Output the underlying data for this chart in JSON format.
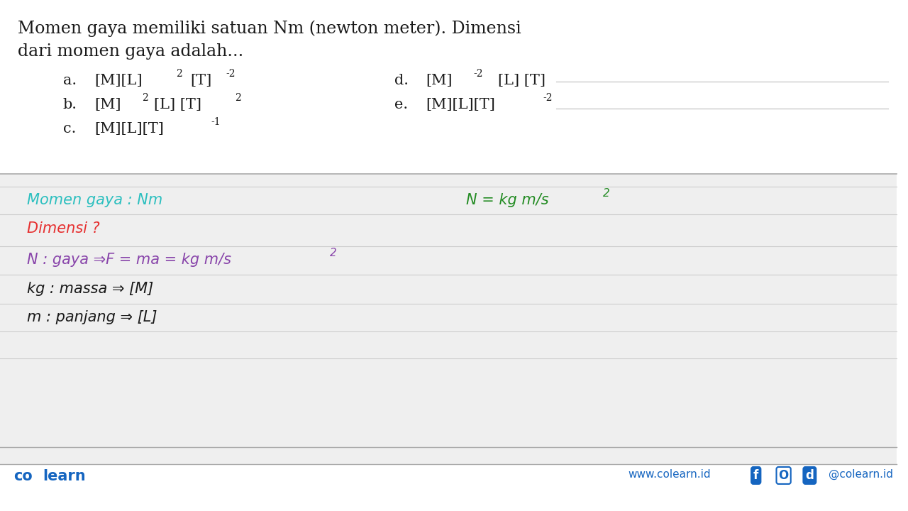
{
  "bg_color": "#f5f5f5",
  "white_color": "#ffffff",
  "black_color": "#1a1a1a",
  "teal_color": "#2bbfbf",
  "red_color": "#e63030",
  "purple_color": "#8844aa",
  "green_color": "#228B22",
  "blue_header": "#1565c0",
  "title_line1": "Momen gaya memiliki satuan Nm (newton meter). Dimensi",
  "title_line2": "dari momen gaya adalah...",
  "footer_left": "co learn",
  "footer_right_web": "www.colearn.id",
  "footer_color": "#1565c0"
}
